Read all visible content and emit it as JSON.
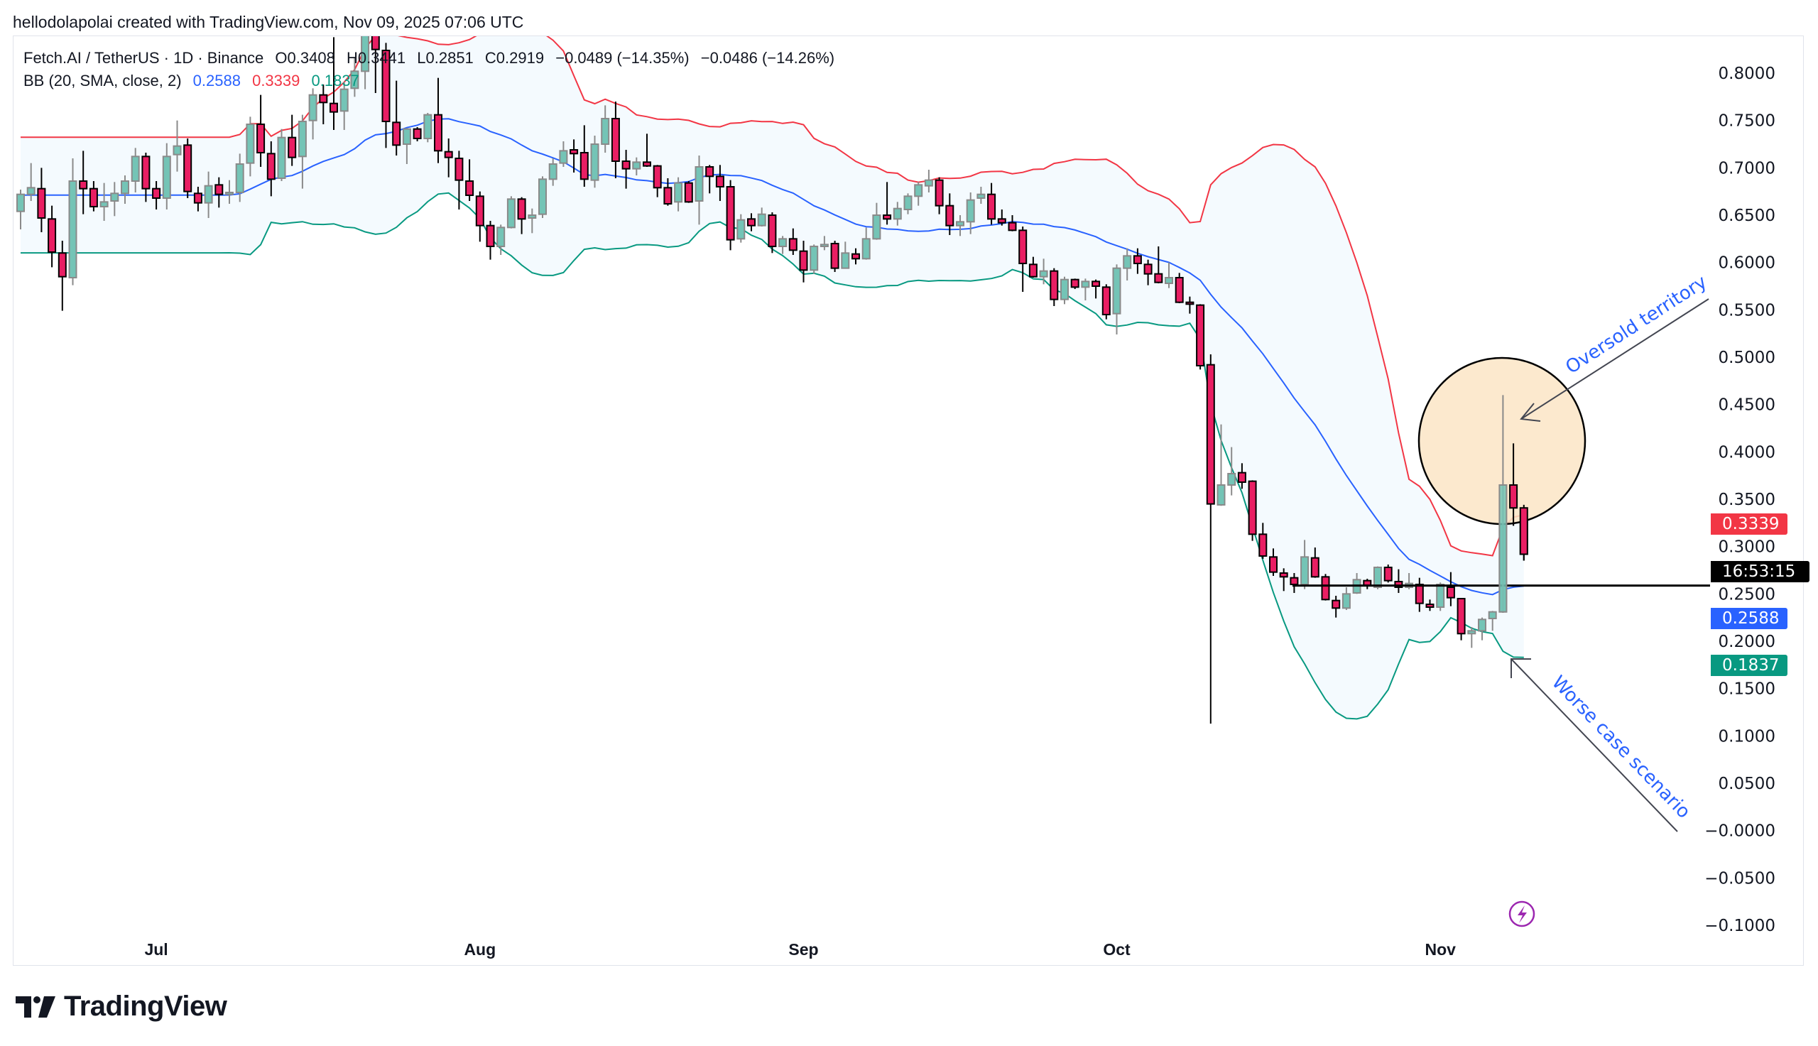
{
  "credit": "hellodolapolai created with TradingView.com, Nov 09, 2025 07:06 UTC",
  "legend": {
    "symbol": "Fetch.AI / TetherUS · 1D · Binance",
    "open": "O0.3408",
    "high": "H0.3441",
    "low": "L0.2851",
    "close": "C0.2919",
    "change": "−0.0489 (−14.35%)",
    "change2": "−0.0486 (−14.26%)",
    "bb_label": "BB (20, SMA, close, 2)",
    "bb_basis": "0.2588",
    "bb_upper": "0.3339",
    "bb_lower": "0.1837"
  },
  "price_tags": {
    "upper": "0.3339",
    "countdown": "16:53:15",
    "basis": "0.2588",
    "lower": "0.1837"
  },
  "annotations": {
    "oversold": "Oversold territory",
    "worse_case": "Worse case scenario"
  },
  "logo_text": "TradingView",
  "colors": {
    "up_fill": "#74C4B6",
    "up_border": "#8A8A8A",
    "down_fill": "#E91E63",
    "down_border": "#000000",
    "bb_upper": "#F23645",
    "bb_basis": "#2962FF",
    "bb_lower": "#089981",
    "bb_fill": "rgba(33,150,243,0.05)",
    "circle_fill": "#FCE5C6",
    "annotation_text": "#2962FF",
    "lightning": "#9C27B0"
  },
  "chart_data": {
    "type": "candlestick",
    "interval": "1D",
    "indicator": {
      "name": "BB",
      "length": 20,
      "ma": "SMA",
      "source": "close",
      "mult": 2
    },
    "ylim": [
      -0.1,
      0.8
    ],
    "y_ticks": [
      {
        "v": 0.8,
        "label": "0.8000"
      },
      {
        "v": 0.75,
        "label": "0.7500"
      },
      {
        "v": 0.7,
        "label": "0.7000"
      },
      {
        "v": 0.65,
        "label": "0.6500"
      },
      {
        "v": 0.6,
        "label": "0.6000"
      },
      {
        "v": 0.55,
        "label": "0.5500"
      },
      {
        "v": 0.5,
        "label": "0.5000"
      },
      {
        "v": 0.45,
        "label": "0.4500"
      },
      {
        "v": 0.4,
        "label": "0.4000"
      },
      {
        "v": 0.35,
        "label": "0.3500"
      },
      {
        "v": 0.3,
        "label": "0.3000"
      },
      {
        "v": 0.25,
        "label": "0.2500"
      },
      {
        "v": 0.2,
        "label": "0.2000"
      },
      {
        "v": 0.15,
        "label": "0.1500"
      },
      {
        "v": 0.1,
        "label": "0.1000"
      },
      {
        "v": 0.05,
        "label": "0.0500"
      },
      {
        "v": 0,
        "label": "−0.0000"
      },
      {
        "v": -0.05,
        "label": "−0.0500"
      },
      {
        "v": -0.1,
        "label": "−0.1000"
      }
    ],
    "x_ticks": [
      {
        "date": "2025-07-01",
        "label": "Jul"
      },
      {
        "date": "2025-08-01",
        "label": "Aug"
      },
      {
        "date": "2025-09-01",
        "label": "Sep"
      },
      {
        "date": "2025-10-01",
        "label": "Oct"
      },
      {
        "date": "2025-11-01",
        "label": "Nov"
      }
    ],
    "horizontal_line": 0.2588,
    "columns": [
      "date",
      "open",
      "high",
      "low",
      "close"
    ],
    "ohlc": [
      [
        "2025-06-18",
        0.654,
        0.677,
        0.635,
        0.672
      ],
      [
        "2025-06-19",
        0.672,
        0.705,
        0.665,
        0.679
      ],
      [
        "2025-06-20",
        0.678,
        0.7,
        0.632,
        0.647
      ],
      [
        "2025-06-21",
        0.646,
        0.66,
        0.595,
        0.611
      ],
      [
        "2025-06-22",
        0.61,
        0.623,
        0.549,
        0.585
      ],
      [
        "2025-06-23",
        0.584,
        0.71,
        0.576,
        0.686
      ],
      [
        "2025-06-24",
        0.686,
        0.718,
        0.651,
        0.678
      ],
      [
        "2025-06-25",
        0.678,
        0.686,
        0.654,
        0.659
      ],
      [
        "2025-06-26",
        0.659,
        0.684,
        0.644,
        0.664
      ],
      [
        "2025-06-27",
        0.665,
        0.685,
        0.649,
        0.673
      ],
      [
        "2025-06-28",
        0.673,
        0.692,
        0.662,
        0.686
      ],
      [
        "2025-06-29",
        0.686,
        0.721,
        0.674,
        0.712
      ],
      [
        "2025-06-30",
        0.712,
        0.716,
        0.664,
        0.678
      ],
      [
        "2025-07-01",
        0.678,
        0.686,
        0.656,
        0.668
      ],
      [
        "2025-07-02",
        0.668,
        0.726,
        0.656,
        0.712
      ],
      [
        "2025-07-03",
        0.714,
        0.75,
        0.696,
        0.723
      ],
      [
        "2025-07-04",
        0.724,
        0.731,
        0.668,
        0.675
      ],
      [
        "2025-07-05",
        0.673,
        0.68,
        0.654,
        0.663
      ],
      [
        "2025-07-06",
        0.663,
        0.696,
        0.647,
        0.681
      ],
      [
        "2025-07-07",
        0.682,
        0.69,
        0.658,
        0.672
      ],
      [
        "2025-07-08",
        0.672,
        0.687,
        0.662,
        0.674
      ],
      [
        "2025-07-09",
        0.674,
        0.715,
        0.664,
        0.704
      ],
      [
        "2025-07-10",
        0.705,
        0.754,
        0.691,
        0.746
      ],
      [
        "2025-07-11",
        0.746,
        0.777,
        0.701,
        0.716
      ],
      [
        "2025-07-12",
        0.715,
        0.728,
        0.67,
        0.688
      ],
      [
        "2025-07-13",
        0.689,
        0.741,
        0.686,
        0.732
      ],
      [
        "2025-07-14",
        0.732,
        0.756,
        0.702,
        0.711
      ],
      [
        "2025-07-15",
        0.712,
        0.756,
        0.678,
        0.749
      ],
      [
        "2025-07-16",
        0.75,
        0.784,
        0.73,
        0.777
      ],
      [
        "2025-07-17",
        0.777,
        0.788,
        0.746,
        0.769
      ],
      [
        "2025-07-18",
        0.768,
        0.838,
        0.74,
        0.759
      ],
      [
        "2025-07-19",
        0.76,
        0.791,
        0.74,
        0.783
      ],
      [
        "2025-07-20",
        0.784,
        0.816,
        0.775,
        0.802
      ],
      [
        "2025-07-21",
        0.802,
        0.87,
        0.783,
        0.848
      ],
      [
        "2025-07-22",
        0.848,
        0.88,
        0.779,
        0.825
      ],
      [
        "2025-07-23",
        0.824,
        0.832,
        0.721,
        0.749
      ],
      [
        "2025-07-24",
        0.748,
        0.792,
        0.713,
        0.724
      ],
      [
        "2025-07-25",
        0.725,
        0.742,
        0.704,
        0.741
      ],
      [
        "2025-07-26",
        0.741,
        0.743,
        0.728,
        0.731
      ],
      [
        "2025-07-27",
        0.731,
        0.758,
        0.727,
        0.756
      ],
      [
        "2025-07-28",
        0.756,
        0.795,
        0.705,
        0.718
      ],
      [
        "2025-07-29",
        0.717,
        0.731,
        0.69,
        0.711
      ],
      [
        "2025-07-30",
        0.71,
        0.718,
        0.656,
        0.687
      ],
      [
        "2025-07-31",
        0.686,
        0.709,
        0.665,
        0.671
      ],
      [
        "2025-08-01",
        0.67,
        0.675,
        0.622,
        0.639
      ],
      [
        "2025-08-02",
        0.639,
        0.644,
        0.603,
        0.617
      ],
      [
        "2025-08-03",
        0.617,
        0.64,
        0.608,
        0.637
      ],
      [
        "2025-08-04",
        0.637,
        0.67,
        0.636,
        0.667
      ],
      [
        "2025-08-05",
        0.667,
        0.669,
        0.63,
        0.646
      ],
      [
        "2025-08-06",
        0.647,
        0.657,
        0.631,
        0.65
      ],
      [
        "2025-08-07",
        0.651,
        0.691,
        0.647,
        0.688
      ],
      [
        "2025-08-08",
        0.688,
        0.71,
        0.681,
        0.704
      ],
      [
        "2025-08-09",
        0.705,
        0.728,
        0.701,
        0.718
      ],
      [
        "2025-08-10",
        0.719,
        0.73,
        0.695,
        0.715
      ],
      [
        "2025-08-11",
        0.716,
        0.745,
        0.68,
        0.688
      ],
      [
        "2025-08-12",
        0.687,
        0.734,
        0.679,
        0.725
      ],
      [
        "2025-08-13",
        0.725,
        0.766,
        0.716,
        0.752
      ],
      [
        "2025-08-14",
        0.752,
        0.77,
        0.689,
        0.707
      ],
      [
        "2025-08-15",
        0.707,
        0.719,
        0.678,
        0.699
      ],
      [
        "2025-08-16",
        0.699,
        0.711,
        0.692,
        0.706
      ],
      [
        "2025-08-17",
        0.706,
        0.736,
        0.701,
        0.702
      ],
      [
        "2025-08-18",
        0.702,
        0.703,
        0.669,
        0.679
      ],
      [
        "2025-08-19",
        0.679,
        0.689,
        0.66,
        0.662
      ],
      [
        "2025-08-20",
        0.664,
        0.69,
        0.654,
        0.684
      ],
      [
        "2025-08-21",
        0.684,
        0.686,
        0.663,
        0.664
      ],
      [
        "2025-08-22",
        0.665,
        0.713,
        0.64,
        0.701
      ],
      [
        "2025-08-23",
        0.701,
        0.703,
        0.673,
        0.691
      ],
      [
        "2025-08-24",
        0.691,
        0.703,
        0.665,
        0.68
      ],
      [
        "2025-08-25",
        0.68,
        0.687,
        0.613,
        0.624
      ],
      [
        "2025-08-26",
        0.625,
        0.651,
        0.621,
        0.645
      ],
      [
        "2025-08-27",
        0.646,
        0.652,
        0.633,
        0.639
      ],
      [
        "2025-08-28",
        0.639,
        0.658,
        0.638,
        0.651
      ],
      [
        "2025-08-29",
        0.65,
        0.653,
        0.61,
        0.617
      ],
      [
        "2025-08-30",
        0.617,
        0.628,
        0.609,
        0.625
      ],
      [
        "2025-08-31",
        0.625,
        0.636,
        0.608,
        0.613
      ],
      [
        "2025-09-01",
        0.612,
        0.623,
        0.579,
        0.592
      ],
      [
        "2025-09-02",
        0.592,
        0.619,
        0.588,
        0.617
      ],
      [
        "2025-09-03",
        0.617,
        0.628,
        0.613,
        0.619
      ],
      [
        "2025-09-04",
        0.62,
        0.623,
        0.59,
        0.594
      ],
      [
        "2025-09-05",
        0.594,
        0.622,
        0.594,
        0.61
      ],
      [
        "2025-09-06",
        0.609,
        0.615,
        0.598,
        0.604
      ],
      [
        "2025-09-07",
        0.604,
        0.637,
        0.603,
        0.625
      ],
      [
        "2025-09-08",
        0.625,
        0.663,
        0.624,
        0.65
      ],
      [
        "2025-09-09",
        0.65,
        0.685,
        0.64,
        0.646
      ],
      [
        "2025-09-10",
        0.646,
        0.664,
        0.639,
        0.657
      ],
      [
        "2025-09-11",
        0.656,
        0.673,
        0.651,
        0.67
      ],
      [
        "2025-09-12",
        0.67,
        0.685,
        0.66,
        0.682
      ],
      [
        "2025-09-13",
        0.681,
        0.698,
        0.674,
        0.687
      ],
      [
        "2025-09-14",
        0.687,
        0.69,
        0.651,
        0.66
      ],
      [
        "2025-09-15",
        0.66,
        0.673,
        0.629,
        0.639
      ],
      [
        "2025-09-16",
        0.639,
        0.65,
        0.628,
        0.643
      ],
      [
        "2025-09-17",
        0.643,
        0.674,
        0.63,
        0.666
      ],
      [
        "2025-09-18",
        0.668,
        0.68,
        0.662,
        0.672
      ],
      [
        "2025-09-19",
        0.672,
        0.684,
        0.64,
        0.646
      ],
      [
        "2025-09-20",
        0.646,
        0.656,
        0.639,
        0.642
      ],
      [
        "2025-09-21",
        0.642,
        0.65,
        0.633,
        0.634
      ],
      [
        "2025-09-22",
        0.634,
        0.638,
        0.569,
        0.599
      ],
      [
        "2025-09-23",
        0.598,
        0.606,
        0.584,
        0.585
      ],
      [
        "2025-09-24",
        0.585,
        0.604,
        0.577,
        0.591
      ],
      [
        "2025-09-25",
        0.591,
        0.594,
        0.554,
        0.561
      ],
      [
        "2025-09-26",
        0.561,
        0.585,
        0.556,
        0.582
      ],
      [
        "2025-09-27",
        0.582,
        0.583,
        0.572,
        0.574
      ],
      [
        "2025-09-28",
        0.574,
        0.583,
        0.56,
        0.58
      ],
      [
        "2025-09-29",
        0.58,
        0.582,
        0.562,
        0.575
      ],
      [
        "2025-09-30",
        0.574,
        0.577,
        0.54,
        0.545
      ],
      [
        "2025-10-01",
        0.546,
        0.598,
        0.524,
        0.594
      ],
      [
        "2025-10-02",
        0.594,
        0.615,
        0.581,
        0.607
      ],
      [
        "2025-10-03",
        0.607,
        0.615,
        0.588,
        0.599
      ],
      [
        "2025-10-04",
        0.598,
        0.603,
        0.576,
        0.588
      ],
      [
        "2025-10-05",
        0.588,
        0.617,
        0.578,
        0.579
      ],
      [
        "2025-10-06",
        0.578,
        0.6,
        0.573,
        0.584
      ],
      [
        "2025-10-07",
        0.584,
        0.589,
        0.557,
        0.558
      ],
      [
        "2025-10-08",
        0.558,
        0.564,
        0.546,
        0.556
      ],
      [
        "2025-10-09",
        0.555,
        0.556,
        0.487,
        0.491
      ],
      [
        "2025-10-10",
        0.492,
        0.503,
        0.113,
        0.345
      ],
      [
        "2025-10-11",
        0.344,
        0.429,
        0.343,
        0.365
      ],
      [
        "2025-10-12",
        0.365,
        0.405,
        0.354,
        0.377
      ],
      [
        "2025-10-13",
        0.378,
        0.388,
        0.361,
        0.368
      ],
      [
        "2025-10-14",
        0.369,
        0.37,
        0.306,
        0.313
      ],
      [
        "2025-10-15",
        0.313,
        0.325,
        0.287,
        0.29
      ],
      [
        "2025-10-16",
        0.289,
        0.298,
        0.269,
        0.273
      ],
      [
        "2025-10-17",
        0.272,
        0.277,
        0.253,
        0.268
      ],
      [
        "2025-10-18",
        0.267,
        0.272,
        0.251,
        0.26
      ],
      [
        "2025-10-19",
        0.26,
        0.307,
        0.255,
        0.289
      ],
      [
        "2025-10-20",
        0.288,
        0.299,
        0.267,
        0.268
      ],
      [
        "2025-10-21",
        0.268,
        0.271,
        0.243,
        0.244
      ],
      [
        "2025-10-22",
        0.243,
        0.248,
        0.225,
        0.235
      ],
      [
        "2025-10-23",
        0.235,
        0.257,
        0.233,
        0.25
      ],
      [
        "2025-10-24",
        0.251,
        0.272,
        0.25,
        0.265
      ],
      [
        "2025-10-25",
        0.264,
        0.266,
        0.255,
        0.259
      ],
      [
        "2025-10-26",
        0.257,
        0.279,
        0.255,
        0.278
      ],
      [
        "2025-10-27",
        0.278,
        0.281,
        0.262,
        0.264
      ],
      [
        "2025-10-28",
        0.263,
        0.276,
        0.251,
        0.257
      ],
      [
        "2025-10-29",
        0.257,
        0.272,
        0.255,
        0.261
      ],
      [
        "2025-10-30",
        0.26,
        0.267,
        0.231,
        0.24
      ],
      [
        "2025-10-31",
        0.239,
        0.244,
        0.232,
        0.236
      ],
      [
        "2025-11-01",
        0.236,
        0.262,
        0.232,
        0.26
      ],
      [
        "2025-11-02",
        0.257,
        0.273,
        0.237,
        0.246
      ],
      [
        "2025-11-03",
        0.245,
        0.245,
        0.201,
        0.208
      ],
      [
        "2025-11-04",
        0.208,
        0.215,
        0.193,
        0.211
      ],
      [
        "2025-11-05",
        0.211,
        0.225,
        0.201,
        0.223
      ],
      [
        "2025-11-06",
        0.224,
        0.232,
        0.211,
        0.231
      ],
      [
        "2025-11-07",
        0.231,
        0.46,
        0.23,
        0.365
      ],
      [
        "2025-11-08",
        0.365,
        0.409,
        0.322,
        0.3408
      ],
      [
        "2025-11-09",
        0.3408,
        0.3441,
        0.2851,
        0.2919
      ]
    ]
  }
}
